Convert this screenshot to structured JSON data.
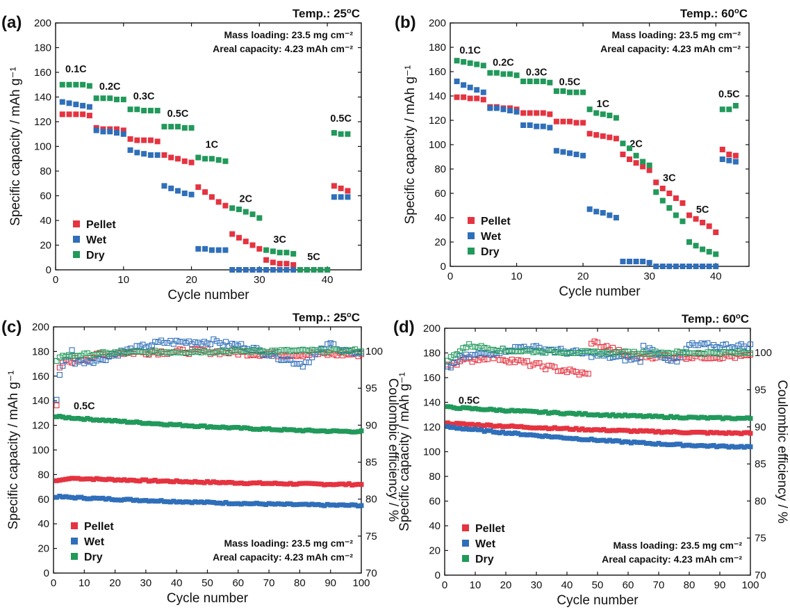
{
  "colors": {
    "Pellet": "#e53340",
    "Wet": "#2f6fba",
    "Dry": "#21995a"
  },
  "chart_data": [
    {
      "panel": "(a)",
      "type": "scatter",
      "temp_label": "Temp.: 25",
      "temp_unit": "oC",
      "info": [
        "Mass loading: 23.5 mg cm⁻²",
        "Areal capacity: 4.23 mAh cm⁻²"
      ],
      "xlabel": "Cycle number",
      "ylabel": "Specific capacity / mAh g⁻¹",
      "xlim": [
        0,
        45
      ],
      "ylim": [
        0,
        200
      ],
      "xticks": [
        0,
        10,
        20,
        30,
        40
      ],
      "yticks": [
        0,
        20,
        40,
        60,
        80,
        100,
        120,
        140,
        160,
        180,
        200
      ],
      "legend": [
        "Pellet",
        "Wet",
        "Dry"
      ],
      "legend_position": "lower-left",
      "rate_labels": [
        {
          "text": "0.1C",
          "x": 3,
          "y": 160
        },
        {
          "text": "0.2C",
          "x": 8,
          "y": 146
        },
        {
          "text": "0.3C",
          "x": 13,
          "y": 138
        },
        {
          "text": "0.5C",
          "x": 18,
          "y": 124
        },
        {
          "text": "1C",
          "x": 23,
          "y": 99
        },
        {
          "text": "2C",
          "x": 28,
          "y": 55
        },
        {
          "text": "3C",
          "x": 33,
          "y": 22
        },
        {
          "text": "5C",
          "x": 38,
          "y": 8
        },
        {
          "text": "0.5C",
          "x": 42,
          "y": 120
        }
      ],
      "series": [
        {
          "name": "Pellet",
          "x": [
            1,
            2,
            3,
            4,
            5,
            6,
            7,
            8,
            9,
            10,
            11,
            12,
            13,
            14,
            15,
            16,
            17,
            18,
            19,
            20,
            21,
            22,
            23,
            24,
            25,
            26,
            27,
            28,
            29,
            30,
            31,
            32,
            33,
            34,
            35,
            36,
            37,
            38,
            39,
            40,
            41,
            42,
            43
          ],
          "y": [
            126,
            126,
            126,
            126,
            125,
            115,
            114,
            114,
            114,
            113,
            106,
            105,
            105,
            105,
            104,
            93,
            91,
            90,
            88,
            87,
            67,
            63,
            59,
            55,
            52,
            29,
            26,
            23,
            20,
            17,
            8,
            6,
            5,
            5,
            4,
            0,
            0,
            0,
            0,
            0,
            68,
            66,
            64
          ]
        },
        {
          "name": "Wet",
          "x": [
            1,
            2,
            3,
            4,
            5,
            6,
            7,
            8,
            9,
            10,
            11,
            12,
            13,
            14,
            15,
            16,
            17,
            18,
            19,
            20,
            21,
            22,
            23,
            24,
            25,
            26,
            27,
            28,
            29,
            30,
            31,
            32,
            33,
            34,
            35,
            36,
            37,
            38,
            39,
            40,
            41,
            42,
            43
          ],
          "y": [
            136,
            135,
            134,
            133,
            132,
            113,
            112,
            112,
            111,
            110,
            97,
            95,
            94,
            93,
            93,
            68,
            66,
            64,
            62,
            61,
            17,
            17,
            16,
            16,
            16,
            0,
            0,
            0,
            0,
            0,
            0,
            0,
            0,
            0,
            0,
            0,
            0,
            0,
            0,
            0,
            59,
            59,
            59
          ]
        },
        {
          "name": "Dry",
          "x": [
            1,
            2,
            3,
            4,
            5,
            6,
            7,
            8,
            9,
            10,
            11,
            12,
            13,
            14,
            15,
            16,
            17,
            18,
            19,
            20,
            21,
            22,
            23,
            24,
            25,
            26,
            27,
            28,
            29,
            30,
            31,
            32,
            33,
            34,
            35,
            36,
            37,
            38,
            39,
            40,
            41,
            42,
            43
          ],
          "y": [
            150,
            150,
            150,
            150,
            149,
            139,
            139,
            139,
            138,
            138,
            130,
            130,
            129,
            129,
            129,
            116,
            116,
            116,
            115,
            115,
            91,
            90,
            90,
            89,
            88,
            50,
            49,
            47,
            45,
            42,
            16,
            15,
            14,
            14,
            13,
            0,
            0,
            0,
            0,
            0,
            111,
            110,
            110
          ]
        }
      ]
    },
    {
      "panel": "(b)",
      "type": "scatter",
      "temp_label": "Temp.: 60",
      "temp_unit": "oC",
      "info": [
        "Mass loading: 23.5 mg cm⁻²",
        "Areal capacity: 4.23 mAh cm⁻²"
      ],
      "xlabel": "Cycle number",
      "ylabel": "Specific capacity / mAh g⁻¹",
      "xlim": [
        0,
        45
      ],
      "ylim": [
        0,
        200
      ],
      "xticks": [
        0,
        10,
        20,
        30,
        40
      ],
      "yticks": [
        0,
        20,
        40,
        60,
        80,
        100,
        120,
        140,
        160,
        180,
        200
      ],
      "legend": [
        "Pellet",
        "Wet",
        "Dry"
      ],
      "legend_position": "lower-left",
      "rate_labels": [
        {
          "text": "0.1C",
          "x": 3,
          "y": 175
        },
        {
          "text": "0.2C",
          "x": 8,
          "y": 165
        },
        {
          "text": "0.3C",
          "x": 13,
          "y": 157
        },
        {
          "text": "0.5C",
          "x": 18,
          "y": 149
        },
        {
          "text": "1C",
          "x": 23,
          "y": 131
        },
        {
          "text": "2C",
          "x": 28,
          "y": 98
        },
        {
          "text": "3C",
          "x": 33,
          "y": 70
        },
        {
          "text": "5C",
          "x": 38,
          "y": 44
        },
        {
          "text": "0.5C",
          "x": 42,
          "y": 139
        }
      ],
      "series": [
        {
          "name": "Pellet",
          "x": [
            1,
            2,
            3,
            4,
            5,
            6,
            7,
            8,
            9,
            10,
            11,
            12,
            13,
            14,
            15,
            16,
            17,
            18,
            19,
            20,
            21,
            22,
            23,
            24,
            25,
            26,
            27,
            28,
            29,
            30,
            31,
            32,
            33,
            34,
            35,
            36,
            37,
            38,
            39,
            40,
            41,
            42,
            43
          ],
          "y": [
            139,
            139,
            138,
            138,
            137,
            131,
            131,
            130,
            130,
            129,
            126,
            126,
            126,
            126,
            125,
            119,
            119,
            119,
            118,
            118,
            109,
            108,
            107,
            106,
            105,
            92,
            88,
            85,
            82,
            79,
            69,
            64,
            60,
            56,
            52,
            42,
            39,
            36,
            33,
            28,
            96,
            92,
            91
          ]
        },
        {
          "name": "Wet",
          "x": [
            1,
            2,
            3,
            4,
            5,
            6,
            7,
            8,
            9,
            10,
            11,
            12,
            13,
            14,
            15,
            16,
            17,
            18,
            19,
            20,
            21,
            22,
            23,
            24,
            25,
            26,
            27,
            28,
            29,
            30,
            31,
            32,
            33,
            34,
            35,
            36,
            37,
            38,
            39,
            40,
            41,
            42,
            43
          ],
          "y": [
            152,
            149,
            147,
            145,
            143,
            130,
            130,
            129,
            128,
            127,
            116,
            116,
            115,
            115,
            114,
            95,
            94,
            93,
            92,
            91,
            47,
            45,
            44,
            42,
            40,
            4,
            4,
            4,
            4,
            3,
            0,
            0,
            0,
            0,
            0,
            0,
            0,
            0,
            0,
            0,
            88,
            87,
            86
          ]
        },
        {
          "name": "Dry",
          "x": [
            1,
            2,
            3,
            4,
            5,
            6,
            7,
            8,
            9,
            10,
            11,
            12,
            13,
            14,
            15,
            16,
            17,
            18,
            19,
            20,
            21,
            22,
            23,
            24,
            25,
            26,
            27,
            28,
            29,
            30,
            31,
            32,
            33,
            34,
            35,
            36,
            37,
            38,
            39,
            40,
            41,
            42,
            43
          ],
          "y": [
            169,
            168,
            167,
            166,
            165,
            159,
            159,
            158,
            158,
            157,
            152,
            152,
            152,
            152,
            151,
            144,
            144,
            143,
            143,
            143,
            129,
            126,
            125,
            124,
            122,
            101,
            97,
            91,
            86,
            83,
            61,
            54,
            48,
            42,
            37,
            20,
            17,
            14,
            12,
            10,
            129,
            129,
            132
          ]
        }
      ]
    },
    {
      "panel": "(c)",
      "type": "scatter",
      "temp_label": "Temp.: 25",
      "temp_unit": "oC",
      "info": [
        "Mass loading: 23.5 mg cm⁻²",
        "Areal capacity: 4.23 mAh cm⁻²"
      ],
      "xlabel": "Cycle number",
      "ylabel": "Specific capacity / mAh g⁻¹",
      "y2label": "Coulombic efficiency / %",
      "xlim": [
        0,
        100
      ],
      "ylim": [
        0,
        200
      ],
      "y2lim": [
        70,
        103.3
      ],
      "xticks": [
        0,
        10,
        20,
        30,
        40,
        50,
        60,
        70,
        80,
        90,
        100
      ],
      "yticks": [
        0,
        20,
        40,
        60,
        80,
        100,
        120,
        140,
        160,
        180,
        200
      ],
      "y2ticks": [
        70,
        75,
        80,
        85,
        90,
        95,
        100
      ],
      "legend": [
        "Pellet",
        "Wet",
        "Dry"
      ],
      "legend_position": "lower-left",
      "rate_labels": [
        {
          "text": "0.5C",
          "x": 10,
          "y": 133
        }
      ],
      "capacity": {
        "Pellet": {
          "start": 75,
          "peak_cycle": 6,
          "peak": 77,
          "end": 72
        },
        "Wet": {
          "start": 62,
          "end": 55
        },
        "Dry": {
          "start": 127,
          "end": 115
        }
      },
      "ce": {
        "Pellet": [
          [
            1,
            92.5
          ],
          [
            2,
            97.5
          ],
          [
            3,
            98.5
          ],
          [
            20,
            99.8
          ],
          [
            48,
            100
          ],
          [
            72,
            99.6
          ]
        ],
        "Wet": [
          [
            1,
            93.5
          ],
          [
            2,
            97
          ],
          [
            5,
            99.5
          ],
          [
            6,
            100
          ],
          [
            7,
            98.6
          ],
          [
            15,
            98.8
          ],
          [
            22,
            99.9
          ],
          [
            35,
            101.2
          ],
          [
            54,
            101.3
          ],
          [
            55,
            101
          ],
          [
            62,
            100.7
          ],
          [
            81,
            98.2
          ],
          [
            90,
            101
          ],
          [
            98,
            99.5
          ]
        ],
        "Dry": [
          [
            1,
            98.8
          ],
          [
            2,
            99.3
          ],
          [
            20,
            99.8
          ],
          [
            50,
            100
          ],
          [
            100,
            100.1
          ]
        ]
      }
    },
    {
      "panel": "(d)",
      "type": "scatter",
      "temp_label": "Temp.: 60",
      "temp_unit": "oC",
      "info": [
        "Mass loading: 23.5 mg cm⁻²",
        "Areal capacity: 4.23 mAh cm⁻²"
      ],
      "xlabel": "Cycle number",
      "ylabel": "Specific capacity / mAh g⁻¹",
      "y2label": "Coulombic efficiency / %",
      "xlim": [
        0,
        100
      ],
      "ylim": [
        0,
        200
      ],
      "y2lim": [
        70,
        103.3
      ],
      "xticks": [
        0,
        10,
        20,
        30,
        40,
        50,
        60,
        70,
        80,
        90,
        100
      ],
      "yticks": [
        0,
        20,
        40,
        60,
        80,
        100,
        120,
        140,
        160,
        180,
        200
      ],
      "y2ticks": [
        70,
        75,
        80,
        85,
        90,
        95,
        100
      ],
      "legend": [
        "Pellet",
        "Wet",
        "Dry"
      ],
      "legend_position": "lower-left",
      "rate_labels": [
        {
          "text": "0.5C",
          "x": 8,
          "y": 139
        }
      ],
      "capacity": {
        "Pellet": {
          "start": 123,
          "end": 115
        },
        "Wet": {
          "start": 120,
          "end": 104
        },
        "Dry": {
          "start": 136,
          "end": 127
        }
      },
      "ce": {
        "Pellet": [
          [
            1,
            98.5
          ],
          [
            15,
            99.5
          ],
          [
            47,
            97
          ],
          [
            48,
            101.5
          ],
          [
            60,
            99.6
          ],
          [
            80,
            99.5
          ]
        ],
        "Wet": [
          [
            1,
            97.8
          ],
          [
            5,
            99.3
          ],
          [
            26,
            100.8
          ],
          [
            64,
            99
          ],
          [
            65,
            100.8
          ],
          [
            76,
            98.7
          ],
          [
            80,
            101
          ],
          [
            95,
            100.9
          ]
        ],
        "Dry": [
          [
            1,
            99
          ],
          [
            6,
            100.6
          ],
          [
            8,
            101
          ],
          [
            20,
            100.3
          ],
          [
            50,
            100
          ],
          [
            100,
            100
          ]
        ]
      }
    }
  ]
}
